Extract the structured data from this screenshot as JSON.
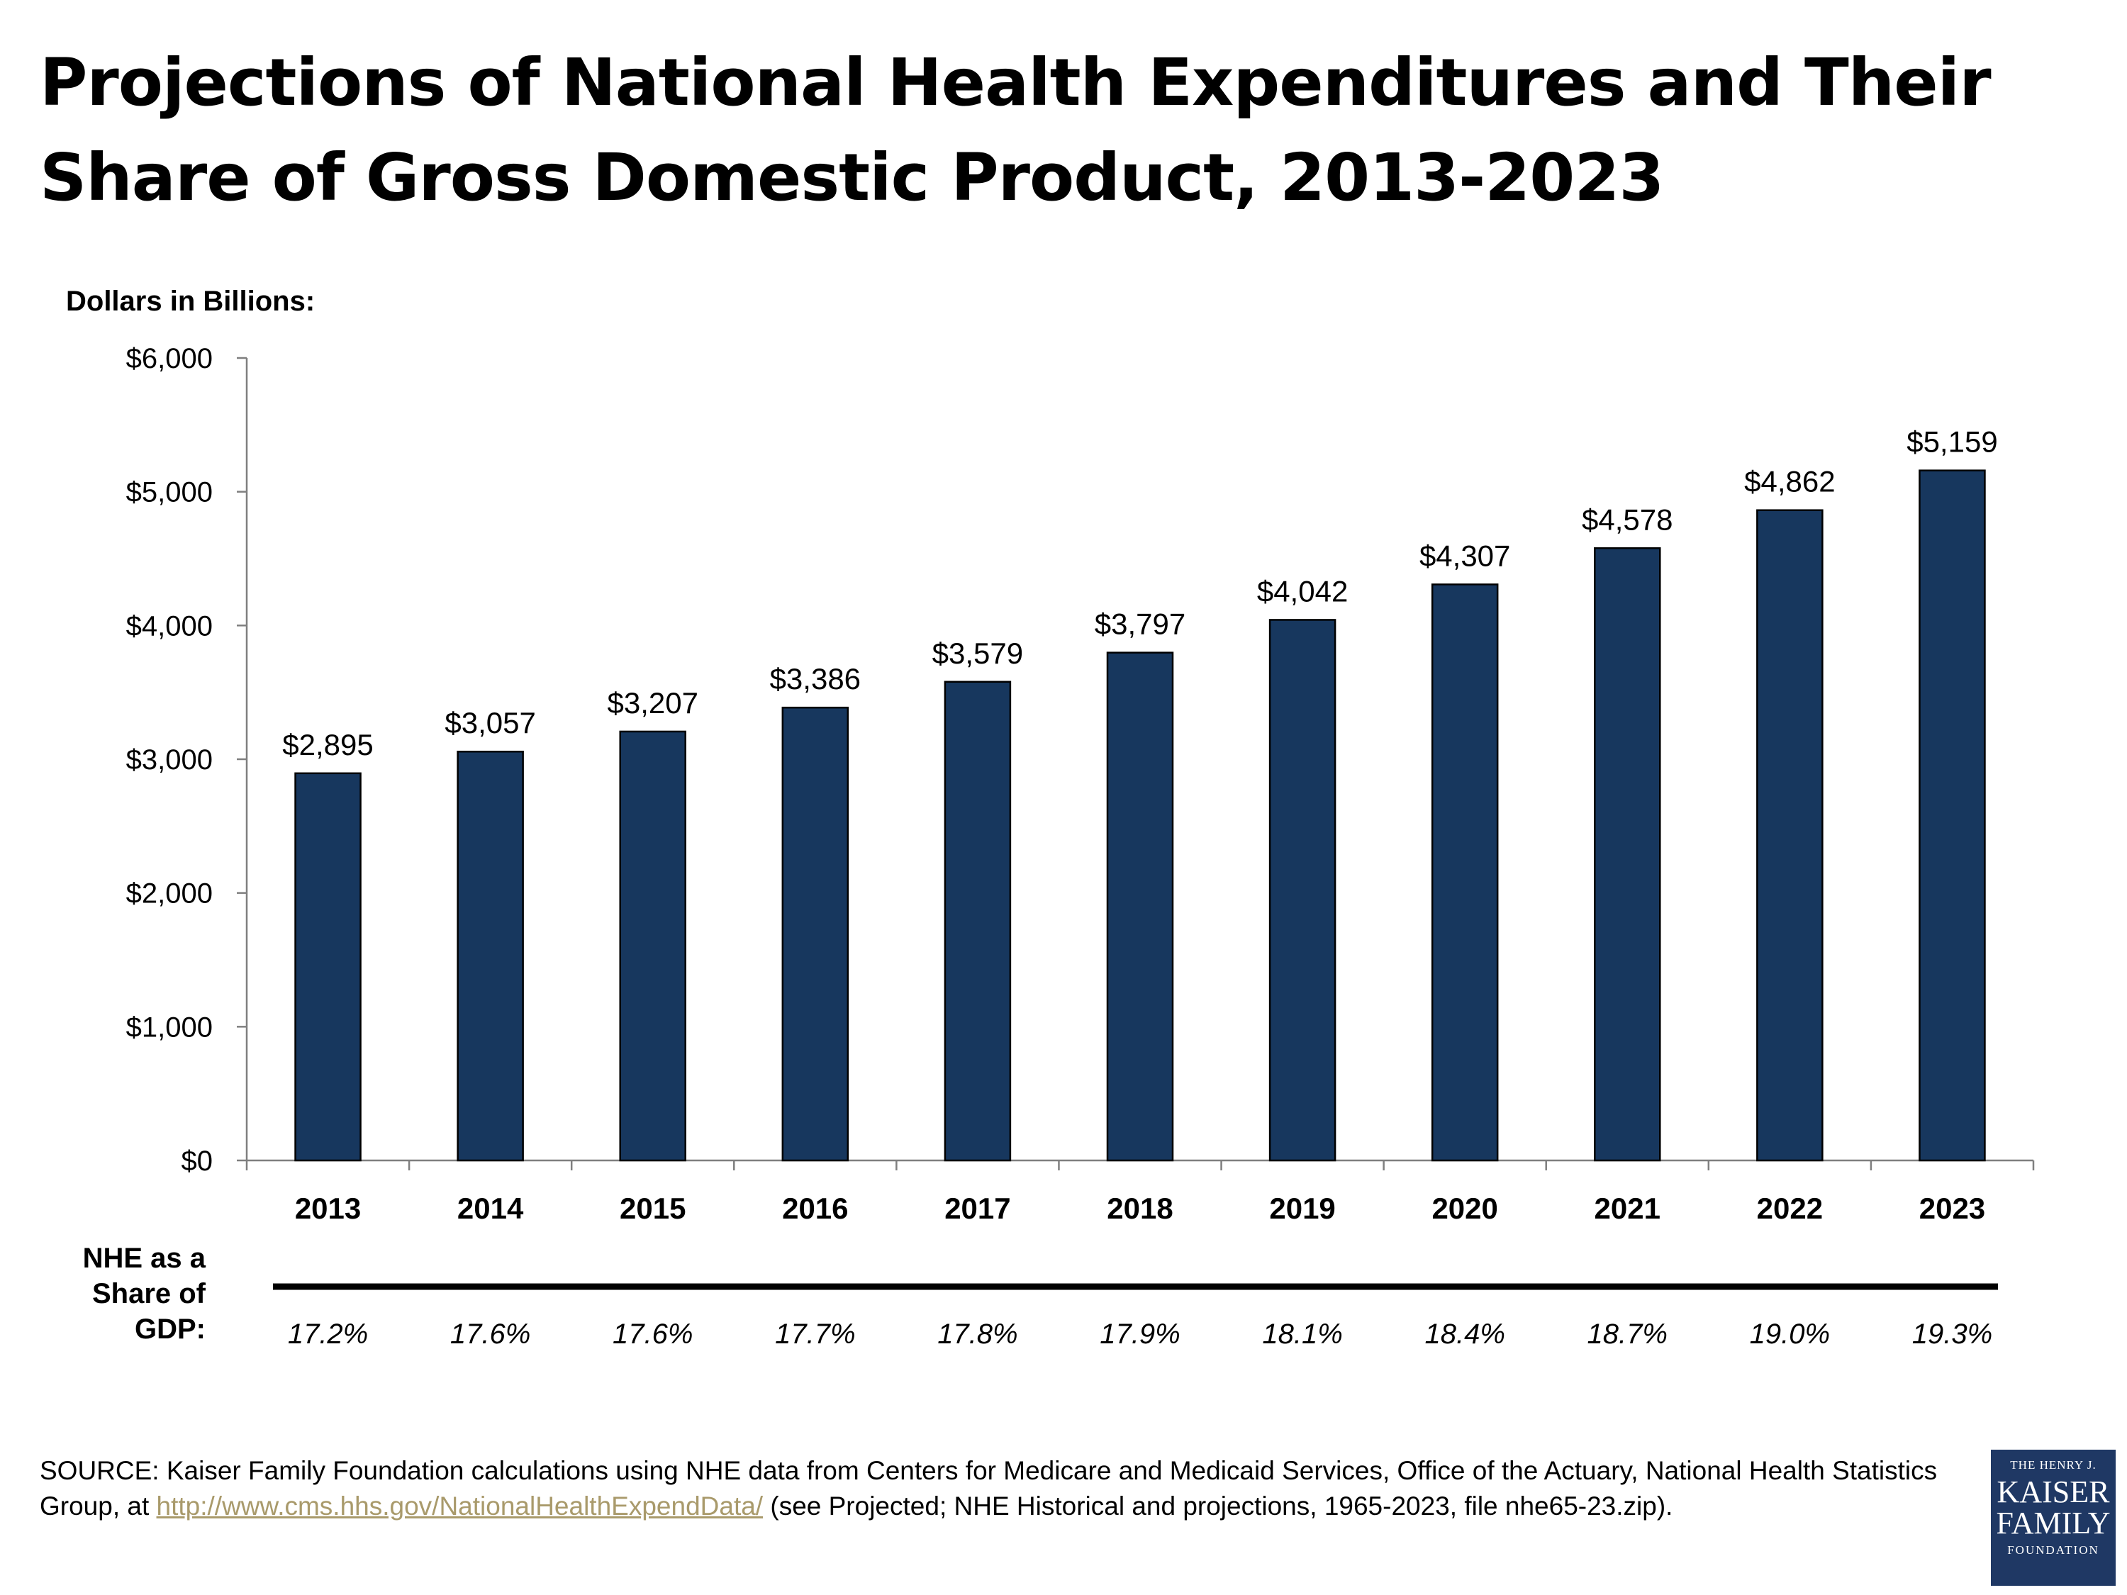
{
  "title": "Projections of National Health Expenditures and Their Share of Gross Domestic Product, 2013-2023",
  "gdp_caption": "NHE as a Share of GDP:",
  "source": {
    "prefix": "SOURCE: Kaiser Family Foundation calculations using NHE data from Centers for Medicare and Medicaid Services, Office of the Actuary, National Health Statistics Group, at ",
    "link_text": "http://www.cms.hhs.gov/NationalHealthExpendData/",
    "suffix": " (see Projected; NHE Historical and projections, 1965-2023, file nhe65-23.zip)."
  },
  "logo": {
    "line1": "THE HENRY J.",
    "line2": "KAISER",
    "line3": "FAMILY",
    "line4": "FOUNDATION"
  },
  "colors": {
    "bar": "#17375e",
    "link": "#a99a6b",
    "logo_bg": "#1f3864"
  },
  "chart_data": {
    "type": "bar",
    "title": "Projections of National Health Expenditures and Their Share of Gross Domestic Product, 2013-2023",
    "ylabel": "Dollars in Billions:",
    "xlabel": "",
    "ylim": [
      0,
      6000
    ],
    "yticks": [
      0,
      1000,
      2000,
      3000,
      4000,
      5000,
      6000
    ],
    "ytick_labels": [
      "$0",
      "$1,000",
      "$2,000",
      "$3,000",
      "$4,000",
      "$5,000",
      "$6,000"
    ],
    "categories": [
      "2013",
      "2014",
      "2015",
      "2016",
      "2017",
      "2018",
      "2019",
      "2020",
      "2021",
      "2022",
      "2023"
    ],
    "values": [
      2895,
      3057,
      3207,
      3386,
      3579,
      3797,
      4042,
      4307,
      4578,
      4862,
      5159
    ],
    "data_labels": [
      "$2,895",
      "$3,057",
      "$3,207",
      "$3,386",
      "$3,579",
      "$3,797",
      "$4,042",
      "$4,307",
      "$4,578",
      "$4,862",
      "$5,159"
    ],
    "gdp_share": [
      "17.2%",
      "17.6%",
      "17.6%",
      "17.7%",
      "17.8%",
      "17.9%",
      "18.1%",
      "18.4%",
      "18.7%",
      "19.0%",
      "19.3%"
    ],
    "grid": false,
    "legend": "none"
  }
}
